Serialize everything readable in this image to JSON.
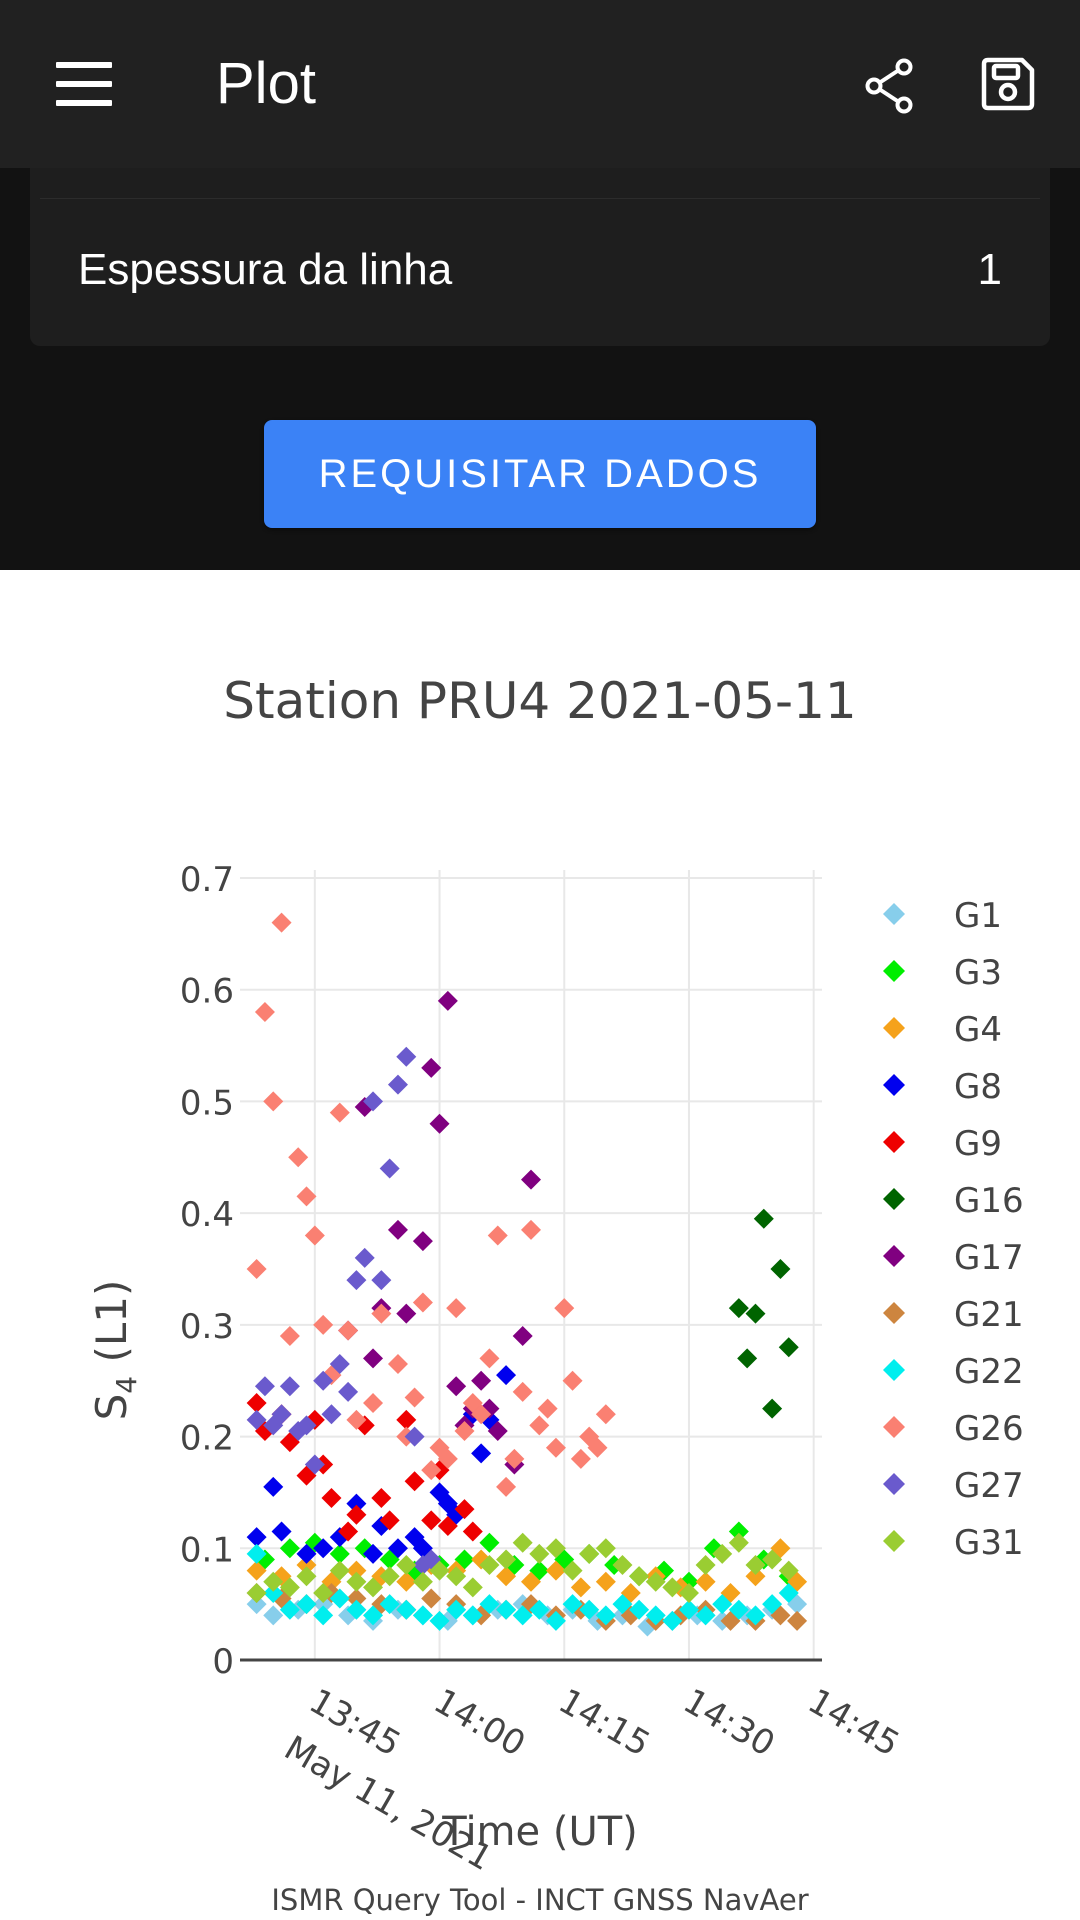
{
  "appbar": {
    "title": "Plot",
    "icons": [
      "menu-icon",
      "share-icon",
      "save-icon"
    ]
  },
  "settings": {
    "line_width_label": "Espessura da linha",
    "line_width_value": "1"
  },
  "request_button": {
    "label": "REQUISITAR DADOS"
  },
  "colors": {
    "appbar": "#212121",
    "panel": "#121212",
    "card": "#1e1e1e",
    "button": "#3b82f6"
  },
  "chart_data": {
    "type": "scatter",
    "title": "Station PRU4 2021-05-11",
    "xlabel": "Time (UT)",
    "ylabel_main": "S",
    "ylabel_sub": "4",
    "ylabel_suffix": " (L1)",
    "x_date_label": "May 11, 2021",
    "x_ticks": [
      "13:45",
      "14:00",
      "14:15",
      "14:30",
      "14:45"
    ],
    "y_ticks": [
      "0",
      "0.1",
      "0.2",
      "0.3",
      "0.4",
      "0.5",
      "0.6",
      "0.7"
    ],
    "xlim": [
      "13:36",
      "14:46"
    ],
    "ylim": [
      0,
      0.7
    ],
    "grid": true,
    "legend_position": "right",
    "marker": "diamond",
    "series": [
      {
        "name": "G1",
        "color": "#87ceeb",
        "x": [
          "13:38",
          "13:40",
          "13:43",
          "13:46",
          "13:49",
          "13:52",
          "13:55",
          "13:58",
          "14:01",
          "14:04",
          "14:07",
          "14:10",
          "14:13",
          "14:16",
          "14:19",
          "14:22",
          "14:25",
          "14:28",
          "14:31",
          "14:34",
          "14:37",
          "14:40",
          "14:43"
        ],
        "y": [
          0.05,
          0.04,
          0.045,
          0.05,
          0.04,
          0.035,
          0.045,
          0.04,
          0.035,
          0.04,
          0.045,
          0.05,
          0.04,
          0.045,
          0.035,
          0.04,
          0.03,
          0.035,
          0.04,
          0.035,
          0.04,
          0.045,
          0.05
        ]
      },
      {
        "name": "G3",
        "color": "#00ee00",
        "x": [
          "13:39",
          "13:42",
          "13:45",
          "13:48",
          "13:51",
          "13:54",
          "13:57",
          "14:00",
          "14:03",
          "14:06",
          "14:09",
          "14:12",
          "14:15",
          "14:18",
          "14:21",
          "14:24",
          "14:27",
          "14:30",
          "14:33",
          "14:36",
          "14:39",
          "14:42"
        ],
        "y": [
          0.09,
          0.1,
          0.105,
          0.095,
          0.1,
          0.09,
          0.08,
          0.085,
          0.09,
          0.105,
          0.085,
          0.08,
          0.09,
          0.095,
          0.085,
          0.075,
          0.08,
          0.07,
          0.1,
          0.115,
          0.09,
          0.075
        ]
      },
      {
        "name": "G4",
        "color": "#f5a21b",
        "x": [
          "13:38",
          "13:41",
          "13:44",
          "13:47",
          "13:50",
          "13:53",
          "13:56",
          "13:59",
          "14:02",
          "14:05",
          "14:08",
          "14:11",
          "14:14",
          "14:17",
          "14:20",
          "14:23",
          "14:26",
          "14:29",
          "14:32",
          "14:35",
          "14:38",
          "14:41",
          "14:43"
        ],
        "y": [
          0.08,
          0.075,
          0.085,
          0.07,
          0.08,
          0.075,
          0.07,
          0.085,
          0.08,
          0.09,
          0.075,
          0.07,
          0.08,
          0.065,
          0.07,
          0.06,
          0.075,
          0.065,
          0.07,
          0.06,
          0.075,
          0.1,
          0.07
        ]
      },
      {
        "name": "G8",
        "color": "#0000ee",
        "x": [
          "13:38",
          "13:40",
          "13:41",
          "13:44",
          "13:46",
          "13:48",
          "13:50",
          "13:52",
          "13:53",
          "13:55",
          "13:57",
          "13:58",
          "14:00",
          "14:01",
          "14:02",
          "14:04",
          "14:05",
          "14:06",
          "14:08"
        ],
        "y": [
          0.11,
          0.155,
          0.115,
          0.095,
          0.1,
          0.11,
          0.14,
          0.095,
          0.12,
          0.1,
          0.11,
          0.1,
          0.15,
          0.14,
          0.13,
          0.22,
          0.185,
          0.215,
          0.255
        ]
      },
      {
        "name": "G9",
        "color": "#ee0000",
        "x": [
          "13:38",
          "13:39",
          "13:41",
          "13:42",
          "13:44",
          "13:45",
          "13:46",
          "13:47",
          "13:49",
          "13:50",
          "13:51",
          "13:53",
          "13:54",
          "13:56",
          "13:57",
          "13:59",
          "14:00",
          "14:01",
          "14:03",
          "14:04"
        ],
        "y": [
          0.23,
          0.205,
          0.22,
          0.195,
          0.165,
          0.215,
          0.175,
          0.145,
          0.115,
          0.13,
          0.21,
          0.145,
          0.125,
          0.215,
          0.16,
          0.125,
          0.17,
          0.12,
          0.135,
          0.115
        ]
      },
      {
        "name": "G16",
        "color": "#006400",
        "x": [
          "14:36",
          "14:37",
          "14:38",
          "14:39",
          "14:40",
          "14:41",
          "14:42"
        ],
        "y": [
          0.315,
          0.27,
          0.31,
          0.395,
          0.225,
          0.35,
          0.28
        ]
      },
      {
        "name": "G17",
        "color": "#800080",
        "x": [
          "13:49",
          "13:51",
          "13:52",
          "13:53",
          "13:55",
          "13:56",
          "13:58",
          "13:59",
          "14:00",
          "14:01",
          "14:02",
          "14:03",
          "14:04",
          "14:05",
          "14:06",
          "14:07",
          "14:09",
          "14:10",
          "14:11"
        ],
        "y": [
          0.295,
          0.495,
          0.27,
          0.315,
          0.385,
          0.31,
          0.375,
          0.53,
          0.48,
          0.59,
          0.245,
          0.21,
          0.225,
          0.25,
          0.225,
          0.205,
          0.175,
          0.29,
          0.43
        ]
      },
      {
        "name": "G21",
        "color": "#cd853f",
        "x": [
          "13:38",
          "13:41",
          "13:44",
          "13:47",
          "13:50",
          "13:53",
          "13:56",
          "13:59",
          "14:02",
          "14:05",
          "14:08",
          "14:11",
          "14:14",
          "14:17",
          "14:20",
          "14:23",
          "14:26",
          "14:29",
          "14:32",
          "14:35",
          "14:38",
          "14:41",
          "14:43"
        ],
        "y": [
          0.06,
          0.055,
          0.05,
          0.06,
          0.055,
          0.05,
          0.045,
          0.055,
          0.05,
          0.04,
          0.045,
          0.05,
          0.04,
          0.045,
          0.035,
          0.04,
          0.035,
          0.04,
          0.045,
          0.035,
          0.035,
          0.04,
          0.035
        ]
      },
      {
        "name": "G22",
        "color": "#00eeee",
        "x": [
          "13:38",
          "13:40",
          "13:42",
          "13:44",
          "13:46",
          "13:48",
          "13:50",
          "13:52",
          "13:54",
          "13:56",
          "13:58",
          "14:00",
          "14:02",
          "14:04",
          "14:06",
          "14:08",
          "14:10",
          "14:12",
          "14:14",
          "14:16",
          "14:18",
          "14:20",
          "14:22",
          "14:24",
          "14:26",
          "14:28",
          "14:30",
          "14:32",
          "14:34",
          "14:36",
          "14:38",
          "14:40",
          "14:42"
        ],
        "y": [
          0.095,
          0.06,
          0.045,
          0.05,
          0.04,
          0.055,
          0.045,
          0.04,
          0.05,
          0.045,
          0.04,
          0.035,
          0.045,
          0.04,
          0.05,
          0.045,
          0.04,
          0.045,
          0.035,
          0.05,
          0.045,
          0.04,
          0.05,
          0.045,
          0.04,
          0.035,
          0.045,
          0.04,
          0.05,
          0.045,
          0.04,
          0.05,
          0.06
        ]
      },
      {
        "name": "G26",
        "color": "#fa8072",
        "x": [
          "13:38",
          "13:39",
          "13:40",
          "13:41",
          "13:42",
          "13:43",
          "13:44",
          "13:45",
          "13:46",
          "13:47",
          "13:48",
          "13:49",
          "13:50",
          "13:52",
          "13:53",
          "13:55",
          "13:56",
          "13:57",
          "13:58",
          "13:59",
          "14:00",
          "14:01",
          "14:02",
          "14:03",
          "14:04",
          "14:05",
          "14:06",
          "14:07",
          "14:08",
          "14:09",
          "14:10",
          "14:11",
          "14:12",
          "14:13",
          "14:14",
          "14:15",
          "14:16",
          "14:17",
          "14:18",
          "14:19",
          "14:20"
        ],
        "y": [
          0.35,
          0.58,
          0.5,
          0.66,
          0.29,
          0.45,
          0.415,
          0.38,
          0.3,
          0.255,
          0.49,
          0.295,
          0.215,
          0.23,
          0.31,
          0.265,
          0.2,
          0.235,
          0.32,
          0.17,
          0.19,
          0.18,
          0.315,
          0.205,
          0.23,
          0.22,
          0.27,
          0.38,
          0.155,
          0.18,
          0.24,
          0.385,
          0.21,
          0.225,
          0.19,
          0.315,
          0.25,
          0.18,
          0.2,
          0.19,
          0.22
        ]
      },
      {
        "name": "G27",
        "color": "#6a5acd",
        "x": [
          "13:38",
          "13:39",
          "13:40",
          "13:41",
          "13:42",
          "13:43",
          "13:44",
          "13:45",
          "13:46",
          "13:47",
          "13:48",
          "13:49",
          "13:50",
          "13:51",
          "13:52",
          "13:53",
          "13:54",
          "13:55",
          "13:56",
          "13:57",
          "13:58",
          "13:59"
        ],
        "y": [
          0.215,
          0.245,
          0.21,
          0.22,
          0.245,
          0.205,
          0.21,
          0.175,
          0.25,
          0.22,
          0.265,
          0.24,
          0.34,
          0.36,
          0.5,
          0.34,
          0.44,
          0.515,
          0.54,
          0.2,
          0.085,
          0.09
        ]
      },
      {
        "name": "G31",
        "color": "#9acd32",
        "x": [
          "13:38",
          "13:40",
          "13:42",
          "13:44",
          "13:46",
          "13:48",
          "13:50",
          "13:52",
          "13:54",
          "13:56",
          "13:58",
          "14:00",
          "14:02",
          "14:04",
          "14:06",
          "14:08",
          "14:10",
          "14:12",
          "14:14",
          "14:16",
          "14:18",
          "14:20",
          "14:22",
          "14:24",
          "14:26",
          "14:28",
          "14:30",
          "14:32",
          "14:34",
          "14:36",
          "14:38",
          "14:40",
          "14:42"
        ],
        "y": [
          0.06,
          0.07,
          0.065,
          0.075,
          0.06,
          0.08,
          0.07,
          0.065,
          0.075,
          0.085,
          0.07,
          0.08,
          0.075,
          0.065,
          0.085,
          0.09,
          0.105,
          0.095,
          0.1,
          0.08,
          0.095,
          0.1,
          0.085,
          0.075,
          0.07,
          0.065,
          0.06,
          0.085,
          0.095,
          0.105,
          0.085,
          0.09,
          0.08
        ]
      }
    ]
  },
  "footer": {
    "text": "ISMR Query Tool - INCT GNSS NavAer"
  }
}
